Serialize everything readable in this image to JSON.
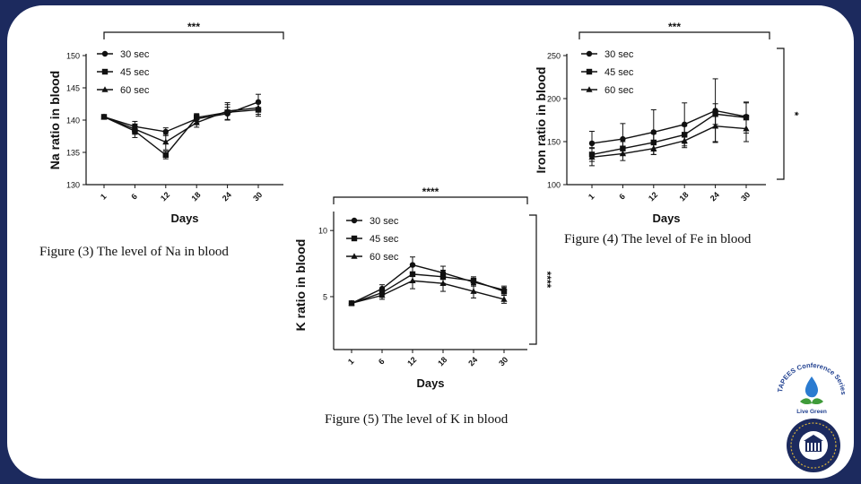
{
  "colors": {
    "frame": "#1c2a5e",
    "ink": "#111111",
    "logo_blue": "#1f3f8f",
    "logo_green": "#3f9b3a",
    "seal_gold": "#d4b03a"
  },
  "captions": {
    "na": "Figure (3) The level of Na in blood",
    "fe": "Figure (4) The level of Fe in blood",
    "k": "Figure (5) The level of K in blood"
  },
  "logos": {
    "conference": {
      "ring_text": "TAPEES Conference Series",
      "caption": "Live Green"
    }
  },
  "chart_data": [
    {
      "id": "na",
      "type": "line",
      "title": "",
      "xlabel": "Days",
      "ylabel": "Na ratio in blood",
      "categories": [
        "1",
        "6",
        "12",
        "18",
        "24",
        "30"
      ],
      "ylim": [
        130,
        150
      ],
      "yticks": [
        130,
        135,
        140,
        145,
        150
      ],
      "legend_position": "top-left",
      "significance": [
        {
          "label": "***",
          "orientation": "top"
        }
      ],
      "series": [
        {
          "name": "30 sec",
          "marker": "circle",
          "values": [
            140.5,
            139.0,
            138.2,
            140.2,
            141.0,
            142.8
          ],
          "errors": [
            0.3,
            0.8,
            0.6,
            0.7,
            1.0,
            1.2
          ]
        },
        {
          "name": "45 sec",
          "marker": "square",
          "values": [
            140.5,
            138.3,
            134.6,
            140.4,
            141.2,
            141.6
          ],
          "errors": [
            0.3,
            1.0,
            0.6,
            0.6,
            1.2,
            1.0
          ]
        },
        {
          "name": "60 sec",
          "marker": "triangle",
          "values": [
            140.5,
            138.6,
            136.6,
            139.6,
            141.4,
            141.9
          ],
          "errors": [
            0.3,
            0.8,
            1.2,
            0.7,
            1.3,
            1.0
          ]
        }
      ]
    },
    {
      "id": "fe",
      "type": "line",
      "title": "",
      "xlabel": "Days",
      "ylabel": "Iron ratio in blood",
      "categories": [
        "1",
        "6",
        "12",
        "18",
        "24",
        "30"
      ],
      "ylim": [
        100,
        250
      ],
      "yticks": [
        100,
        150,
        200,
        250
      ],
      "legend_position": "top-left",
      "significance": [
        {
          "label": "***",
          "orientation": "top"
        },
        {
          "label": "*",
          "orientation": "right"
        }
      ],
      "series": [
        {
          "name": "30 sec",
          "marker": "circle",
          "values": [
            148,
            153,
            161,
            170,
            186,
            179
          ],
          "errors": [
            14,
            18,
            26,
            25,
            37,
            16
          ]
        },
        {
          "name": "45 sec",
          "marker": "square",
          "values": [
            135,
            142,
            149,
            158,
            182,
            178
          ],
          "errors": [
            8,
            8,
            10,
            10,
            12,
            18
          ]
        },
        {
          "name": "60 sec",
          "marker": "triangle",
          "values": [
            132,
            136,
            142,
            151,
            168,
            165
          ],
          "errors": [
            10,
            8,
            7,
            8,
            18,
            15
          ]
        }
      ]
    },
    {
      "id": "k",
      "type": "line",
      "title": "",
      "xlabel": "Days",
      "ylabel": "K ratio in blood",
      "categories": [
        "1",
        "6",
        "12",
        "18",
        "24",
        "30"
      ],
      "ylim": [
        1,
        11.3
      ],
      "yticks": [
        5,
        10
      ],
      "legend_position": "top-left",
      "significance": [
        {
          "label": "****",
          "orientation": "top"
        },
        {
          "label": "****",
          "orientation": "right"
        }
      ],
      "series": [
        {
          "name": "30 sec",
          "marker": "circle",
          "values": [
            4.5,
            5.6,
            7.4,
            6.8,
            6.1,
            5.5
          ],
          "errors": [
            0.1,
            0.3,
            0.6,
            0.5,
            0.3,
            0.3
          ]
        },
        {
          "name": "45 sec",
          "marker": "square",
          "values": [
            4.5,
            5.3,
            6.7,
            6.5,
            6.2,
            5.4
          ],
          "errors": [
            0.1,
            0.3,
            0.6,
            0.5,
            0.3,
            0.3
          ]
        },
        {
          "name": "60 sec",
          "marker": "triangle",
          "values": [
            4.5,
            5.1,
            6.2,
            6.0,
            5.4,
            4.8
          ],
          "errors": [
            0.1,
            0.3,
            0.6,
            0.6,
            0.5,
            0.3
          ]
        }
      ]
    }
  ]
}
